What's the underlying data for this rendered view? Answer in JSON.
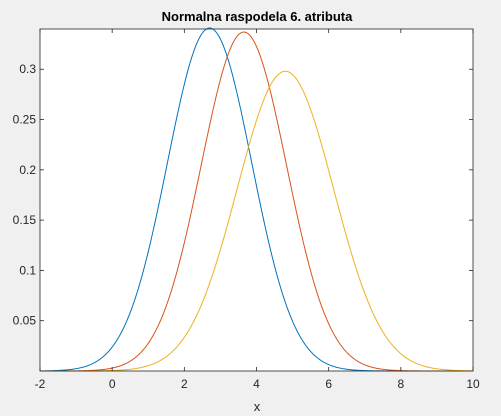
{
  "chart_data": {
    "type": "line",
    "title": "Normalna raspodela 6. atributa",
    "xlabel": "x",
    "ylabel": "",
    "xlim": [
      -2,
      10
    ],
    "ylim": [
      0,
      0.34
    ],
    "xticks": [
      "-2",
      "0",
      "2",
      "4",
      "6",
      "8",
      "10"
    ],
    "yticks": [
      "0.05",
      "0.1",
      "0.15",
      "0.2",
      "0.25",
      "0.3"
    ],
    "grid": false,
    "legend": "none",
    "series": [
      {
        "color": "#0072BD",
        "distribution": "normal",
        "mean": 2.7,
        "peak": 0.341
      },
      {
        "color": "#D95319",
        "distribution": "normal",
        "mean": 3.65,
        "peak": 0.337
      },
      {
        "color": "#EDB120",
        "distribution": "normal",
        "mean": 4.8,
        "peak": 0.298
      }
    ]
  }
}
